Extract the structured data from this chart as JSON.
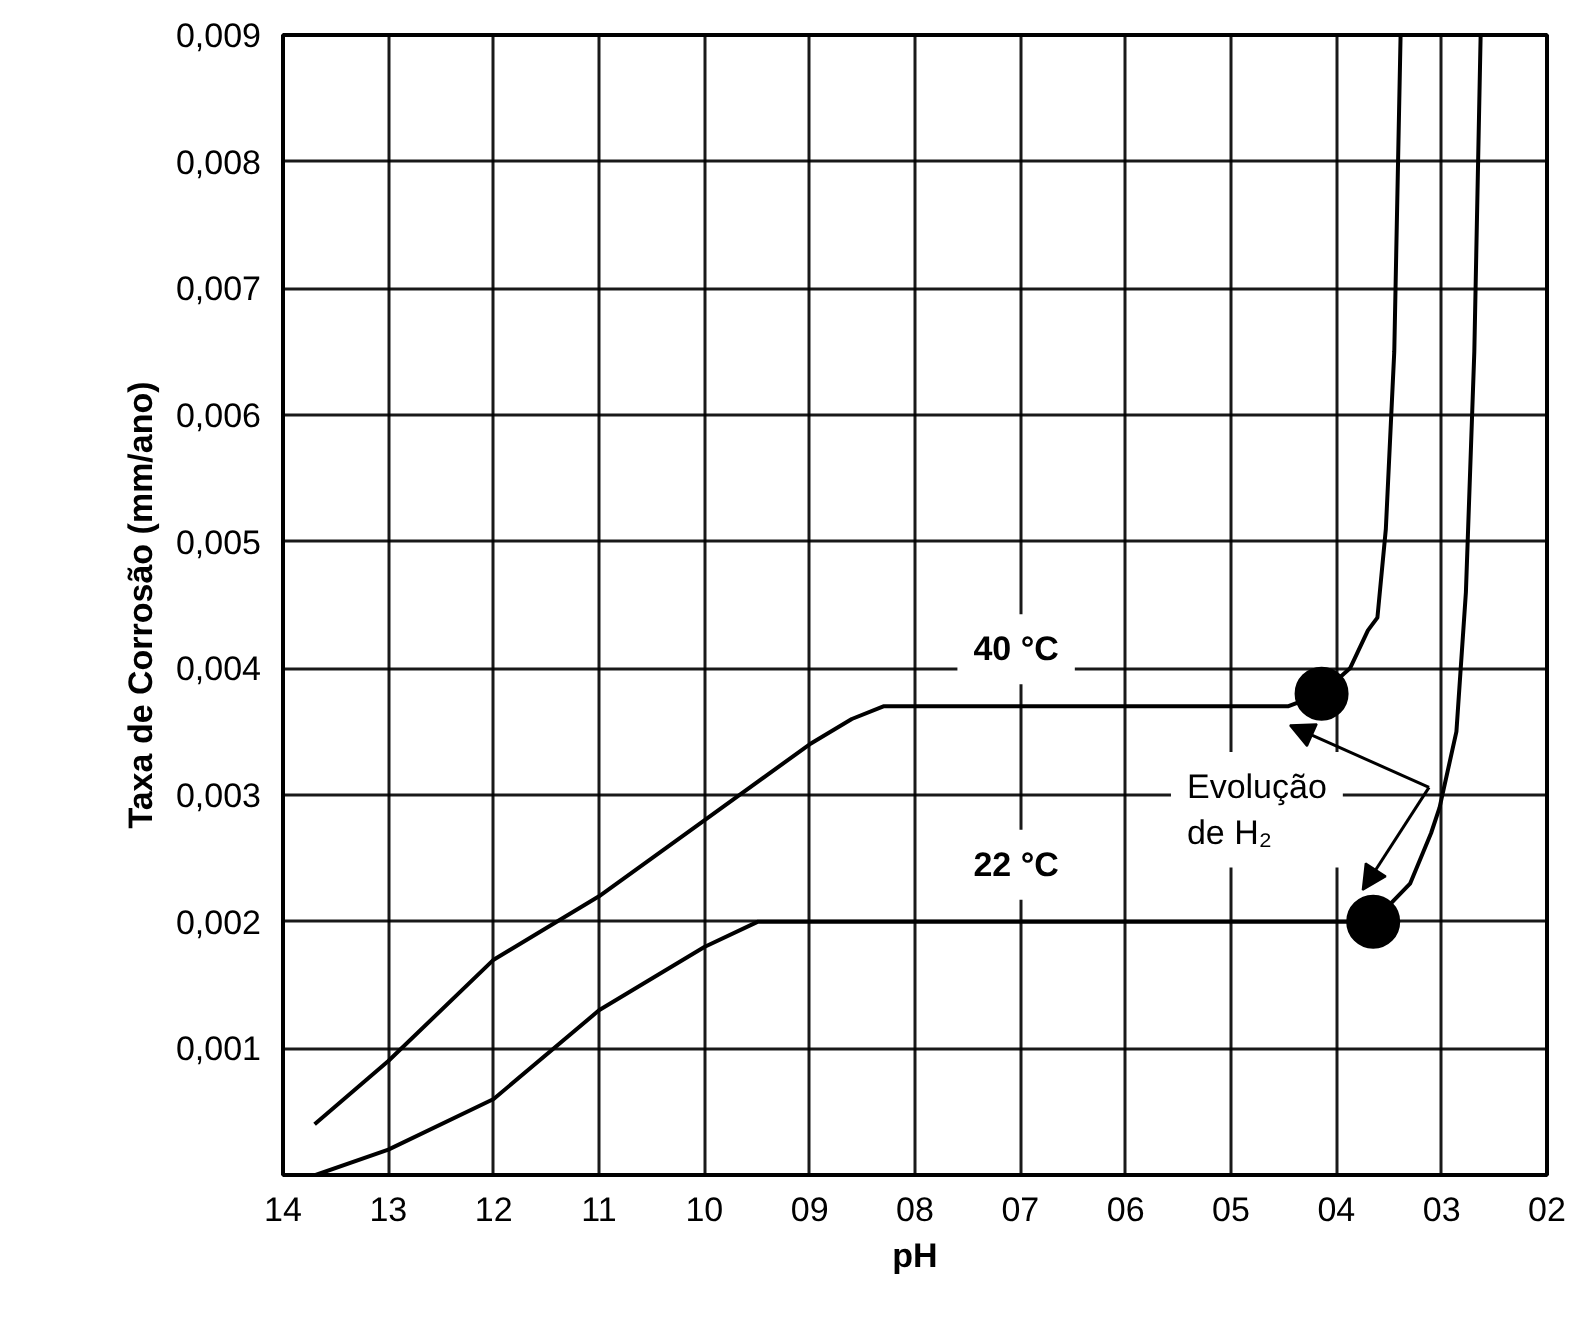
{
  "chart_data": {
    "type": "line",
    "xlabel": "pH",
    "ylabel": "Taxa de Corrosão (mm/ano)",
    "xlim": [
      14,
      2
    ],
    "ylim": [
      0,
      0.009
    ],
    "xticks": [
      {
        "value": 14,
        "label": "14"
      },
      {
        "value": 13,
        "label": "13"
      },
      {
        "value": 12,
        "label": "12"
      },
      {
        "value": 11,
        "label": "11"
      },
      {
        "value": 10,
        "label": "10"
      },
      {
        "value": 9,
        "label": "09"
      },
      {
        "value": 8,
        "label": "08"
      },
      {
        "value": 7,
        "label": "07"
      },
      {
        "value": 6,
        "label": "06"
      },
      {
        "value": 5,
        "label": "05"
      },
      {
        "value": 4,
        "label": "04"
      },
      {
        "value": 3,
        "label": "03"
      },
      {
        "value": 2,
        "label": "02"
      }
    ],
    "yticks": [
      {
        "value": 0,
        "label": null
      },
      {
        "value": 0.001,
        "label": "0,001"
      },
      {
        "value": 0.002,
        "label": "0,002"
      },
      {
        "value": 0.003,
        "label": "0,003"
      },
      {
        "value": 0.004,
        "label": "0,004"
      },
      {
        "value": 0.005,
        "label": "0,005"
      },
      {
        "value": 0.006,
        "label": "0,006"
      },
      {
        "value": 0.007,
        "label": "0,007"
      },
      {
        "value": 0.008,
        "label": "0,008"
      },
      {
        "value": 0.009,
        "label": "0,009"
      }
    ],
    "grid": true,
    "series": [
      {
        "name": "40 °C",
        "color": "#000000",
        "x": [
          13.7,
          13.0,
          12.0,
          11.0,
          10.0,
          9.0,
          8.6,
          8.3,
          7.0,
          6.0,
          5.0,
          4.46,
          4.14,
          3.87,
          3.7,
          3.61,
          3.53,
          3.45,
          3.39
        ],
        "values": [
          0.0004,
          0.0009,
          0.0017,
          0.0022,
          0.0028,
          0.0034,
          0.0036,
          0.0037,
          0.0037,
          0.0037,
          0.0037,
          0.0037,
          0.0038,
          0.004,
          0.0043,
          0.0044,
          0.0051,
          0.0065,
          0.009
        ]
      },
      {
        "name": "22 °C",
        "color": "#000000",
        "x": [
          13.69,
          13.0,
          12.0,
          11.0,
          10.0,
          9.49,
          8.9,
          8.0,
          7.0,
          6.0,
          5.0,
          4.04,
          3.65,
          3.3,
          3.1,
          3.02,
          2.86,
          2.77,
          2.69,
          2.63
        ],
        "values": [
          0.0,
          0.0002,
          0.0006,
          0.0013,
          0.0018,
          0.002,
          0.002,
          0.002,
          0.002,
          0.002,
          0.002,
          0.002,
          0.002,
          0.0023,
          0.0027,
          0.0029,
          0.0035,
          0.0046,
          0.0065,
          0.009
        ]
      },
      {
        "type": "scatter",
        "color": "#000000",
        "marker": "circle",
        "x": [
          4.14,
          3.65
        ],
        "values": [
          0.0038,
          0.002
        ]
      }
    ],
    "annotations": [
      "Evolução\nde H₂"
    ]
  }
}
